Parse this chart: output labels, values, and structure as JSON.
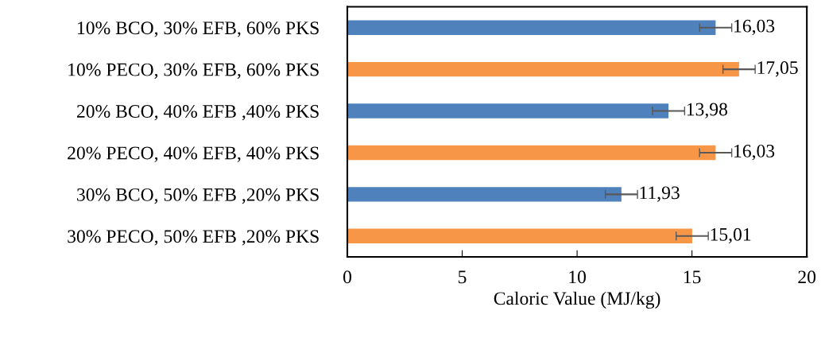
{
  "chart_data": {
    "type": "bar",
    "orientation": "horizontal",
    "xlabel": "Caloric Value (MJ/kg)",
    "categories": [
      "10% BCO, 30% EFB, 60% PKS",
      "10% PECO, 30% EFB, 60% PKS",
      "20% BCO, 40% EFB ,40% PKS",
      "20% PECO, 40% EFB, 40% PKS",
      "30% BCO, 50% EFB ,20% PKS",
      "30% PECO, 50% EFB ,20% PKS"
    ],
    "values": [
      16.03,
      17.05,
      13.98,
      16.03,
      11.93,
      15.01
    ],
    "errors": [
      0.7,
      0.7,
      0.7,
      0.7,
      0.7,
      0.7
    ],
    "value_labels": [
      "16,03",
      "17,05",
      "13,98",
      "16,03",
      "11,93",
      "15,01"
    ],
    "colors": [
      "#4f81bd",
      "#f79646",
      "#4f81bd",
      "#f79646",
      "#4f81bd",
      "#f79646"
    ],
    "xlim": [
      0,
      20
    ],
    "xticks": [
      0,
      5,
      10,
      15,
      20
    ],
    "grid": false,
    "legend": false
  }
}
